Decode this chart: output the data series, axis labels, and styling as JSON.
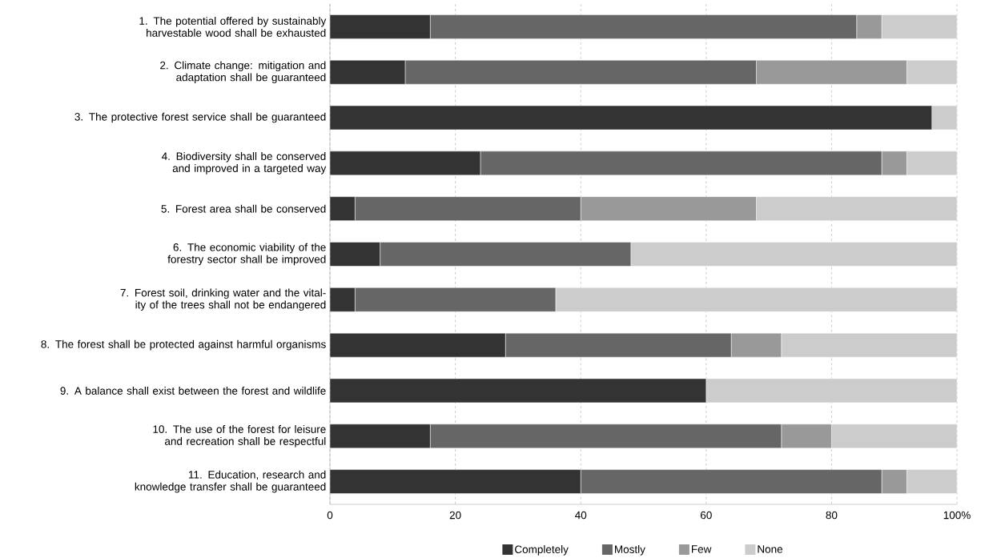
{
  "chart_data": {
    "type": "bar",
    "orientation": "horizontal",
    "stacked": true,
    "categories": [
      "1. The potential offered by sustainably harvestable wood shall be exhausted",
      "2. Climate change: mitigation and adaptation shall be guaranteed",
      "3. The protective forest service shall be guaranteed",
      "4. Biodiversity shall be conserved and improved in a targeted way",
      "5. Forest area shall be conserved",
      "6. The economic viability of the forestry sector shall be improved",
      "7. Forest soil, drinking water and the vital-ity of the trees shall not be endangered",
      "8. The forest shall be protected against harmful organisms",
      "9. A balance shall exist between the forest and wildlife",
      "10. The use of the forest for leisure and recreation shall be respectful",
      "11. Education, research and knowledge transfer shall be guaranteed"
    ],
    "series": [
      {
        "name": "Completely",
        "color": "#333333",
        "values": [
          16,
          12,
          96,
          24,
          4,
          8,
          4,
          28,
          60,
          16,
          40
        ]
      },
      {
        "name": "Mostly",
        "color": "#666666",
        "values": [
          68,
          56,
          0,
          64,
          36,
          40,
          32,
          36,
          0,
          56,
          48
        ]
      },
      {
        "name": "Few",
        "color": "#999999",
        "values": [
          4,
          24,
          0,
          4,
          28,
          0,
          0,
          8,
          0,
          8,
          4
        ]
      },
      {
        "name": "None",
        "color": "#cccccc",
        "values": [
          12,
          8,
          4,
          8,
          32,
          52,
          64,
          28,
          40,
          20,
          8
        ]
      }
    ],
    "xlim": [
      0,
      100
    ],
    "xticks": [
      0,
      20,
      40,
      60,
      80,
      {
        "value": 100,
        "label": "100%"
      }
    ],
    "grid": "x",
    "legend": "bottom"
  }
}
